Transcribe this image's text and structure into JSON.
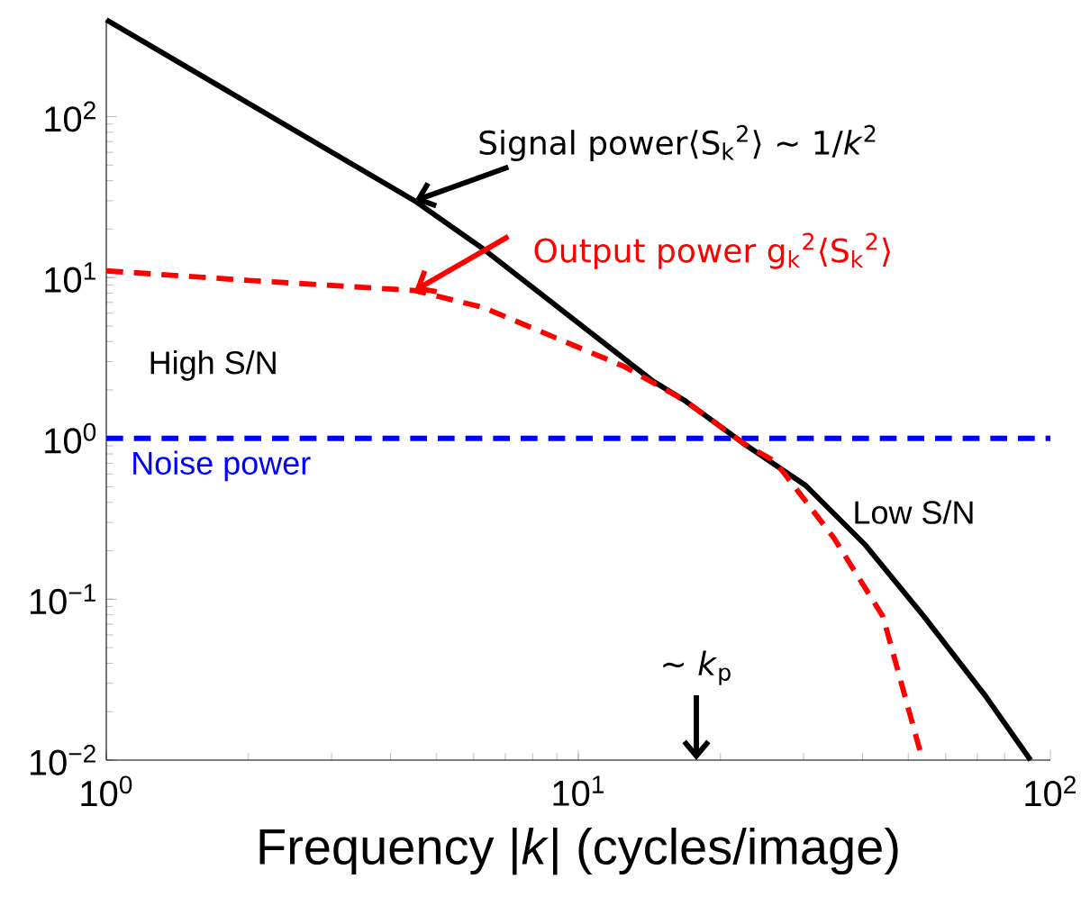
{
  "chart_data": {
    "type": "line",
    "log": "xy",
    "xlabel": "Frequency |*k*| (cycles/image)",
    "x": [
      1,
      2,
      4.5,
      6.3,
      12.5,
      16.8,
      22.5,
      26.1,
      34.8,
      44.2,
      53.6
    ],
    "series": [
      {
        "color": "#000000",
        "line_style": "solid",
        "x": [
          1,
          4.5,
          6.3,
          14.3,
          16.8,
          22.5,
          30.3,
          40.4,
          54,
          72.9,
          90.8
        ],
        "values": [
          400,
          30,
          15,
          2.3,
          1.72,
          0.92,
          0.51,
          0.22,
          0.078,
          0.025,
          0.01
        ]
      },
      {
        "color": "#ff0000",
        "line_style": "dashed",
        "values": [
          11,
          9.6,
          8.3,
          6.5,
          2.8,
          1.72,
          0.92,
          0.72,
          0.24,
          0.078,
          0.01
        ]
      }
    ],
    "xlim": [
      1,
      100
    ],
    "ylim": [
      0.01,
      400
    ],
    "xticks": [
      {
        "value": 1,
        "label": "10$^{0}$"
      },
      {
        "value": 10,
        "label": "10$^{1}$"
      },
      {
        "value": 100,
        "label": "10$^{2}$"
      }
    ],
    "yticks": [
      {
        "value": 0.01,
        "label": "10$^{−2}$"
      },
      {
        "value": 0.1,
        "label": "10$^{−1}$"
      },
      {
        "value": 1,
        "label": "10$^{0}$"
      },
      {
        "value": 10,
        "label": "10$^{1}$"
      },
      {
        "value": 100,
        "label": "10$^{2}$"
      }
    ],
    "ref_lines": [
      {
        "axis": "y",
        "value": 1,
        "label": "Noise power",
        "color": "#0000ff",
        "line_style": "dashed"
      }
    ],
    "annotations": [
      {
        "text": "Signal power⟨S$_{k}$$^{2}$⟩ ∼ 1/*k*$^{2}$",
        "x": 4.5,
        "y": 30
      },
      {
        "text": "Output power g$_{k}$$^{2}$⟨S$_{k}$$^{2}$⟩",
        "x": 4.5,
        "y": 8.3
      },
      "High S/N",
      "Low S/N",
      "∼ *k*$_{p}$"
    ],
    "grid": false
  }
}
